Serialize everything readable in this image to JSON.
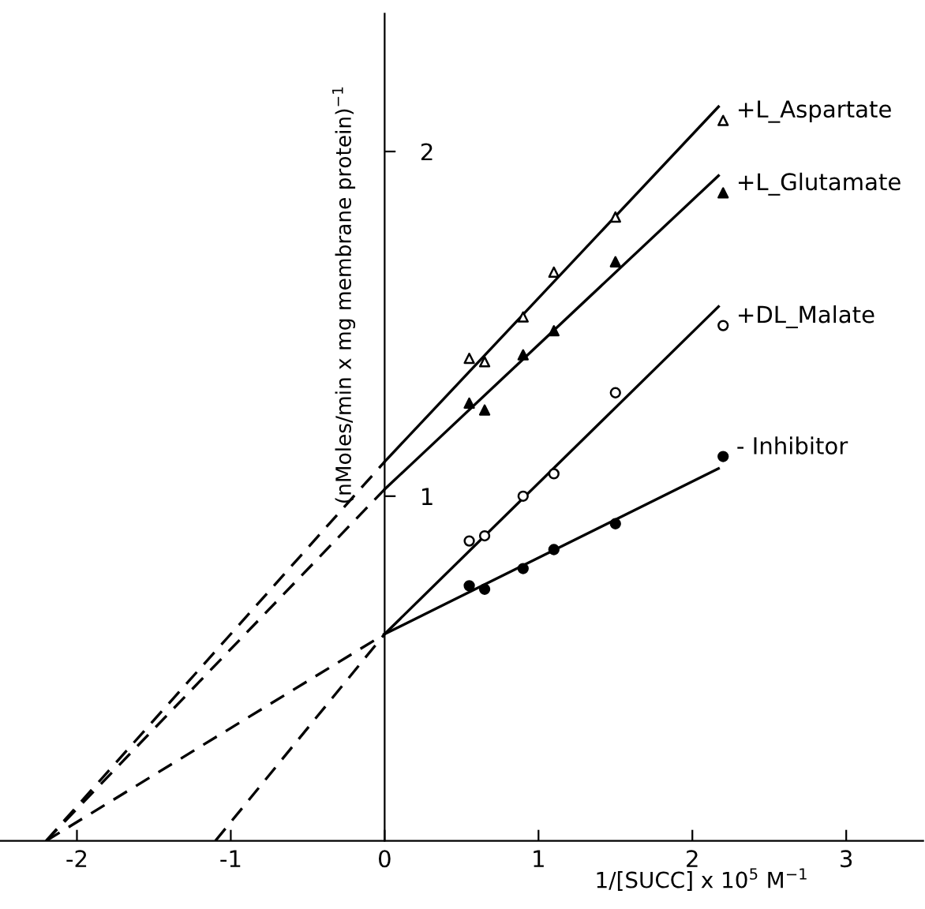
{
  "chart_data": {
    "type": "scatter",
    "xlabel": "1/[SUCC] x 10$^{5}$ M$^{−1}$",
    "ylabel": "(nMoles/min x mg membrane protein)$^{−1}$",
    "xlim": [
      -2.5,
      3.5
    ],
    "ylim": [
      0,
      2.4
    ],
    "xticks": [
      -2,
      -1,
      0,
      1,
      2,
      3
    ],
    "yticks": [
      1,
      2
    ],
    "grid": false,
    "legend": false,
    "series": [
      {
        "name": "+L_Aspartate",
        "marker": "triangle",
        "color": "#ffffff",
        "x": [
          0.55,
          0.65,
          0.9,
          1.1,
          1.5,
          2.2
        ],
        "values": [
          1.4,
          1.39,
          1.52,
          1.65,
          1.81,
          2.09
        ]
      },
      {
        "name": "+L_Glutamate",
        "marker": "triangle",
        "color": "#000000",
        "x": [
          0.55,
          0.65,
          0.9,
          1.1,
          1.5,
          2.2
        ],
        "values": [
          1.27,
          1.25,
          1.41,
          1.48,
          1.68,
          1.88
        ]
      },
      {
        "name": "+DL_Malate",
        "marker": "circle",
        "color": "#ffffff",
        "x": [
          0.55,
          0.65,
          0.9,
          1.1,
          1.5,
          2.2
        ],
        "values": [
          0.87,
          0.885,
          1.0,
          1.065,
          1.3,
          1.495
        ]
      },
      {
        "name": "- Inhibitor",
        "marker": "circle",
        "color": "#000000",
        "x": [
          0.55,
          0.65,
          0.9,
          1.1,
          1.5,
          2.2
        ],
        "values": [
          0.74,
          0.73,
          0.79,
          0.845,
          0.92,
          1.115
        ]
      },
      {
        "type": "line",
        "line_style": "solid",
        "color": "#000000",
        "x": [
          0,
          2.17
        ],
        "values": [
          1.1,
          2.13
        ]
      },
      {
        "type": "line",
        "line_style": "dashed",
        "color": "#000000",
        "x": [
          -2.2,
          0
        ],
        "values": [
          0,
          1.1
        ]
      },
      {
        "type": "line",
        "line_style": "solid",
        "color": "#000000",
        "x": [
          0,
          2.17
        ],
        "values": [
          1.02,
          1.93
        ]
      },
      {
        "type": "line",
        "line_style": "dashed",
        "color": "#000000",
        "x": [
          -2.2,
          0
        ],
        "values": [
          0,
          1.02
        ]
      },
      {
        "type": "line",
        "line_style": "solid",
        "color": "#000000",
        "x": [
          0,
          2.17
        ],
        "values": [
          0.6,
          1.55
        ]
      },
      {
        "type": "line",
        "line_style": "dashed",
        "color": "#000000",
        "x": [
          -1.1,
          0
        ],
        "values": [
          0,
          0.6
        ]
      },
      {
        "type": "line",
        "line_style": "solid",
        "color": "#000000",
        "x": [
          0,
          2.17
        ],
        "values": [
          0.6,
          1.08
        ]
      },
      {
        "type": "line",
        "line_style": "dashed",
        "color": "#000000",
        "x": [
          -2.2,
          0
        ],
        "values": [
          0,
          0.6
        ]
      }
    ]
  }
}
